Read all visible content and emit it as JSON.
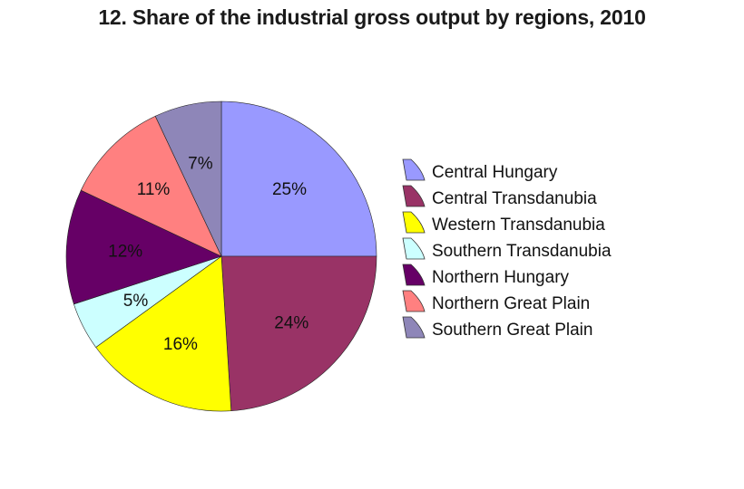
{
  "chart_data": {
    "type": "pie",
    "title": "12. Share of the industrial gross output by regions, 2010",
    "start_angle_deg": 0,
    "direction": "clockwise",
    "legend_position": "right",
    "slices": [
      {
        "label": "Central Hungary",
        "value": 25,
        "display": "25%",
        "color": "#9999FF"
      },
      {
        "label": "Central Transdanubia",
        "value": 24,
        "display": "24%",
        "color": "#993366"
      },
      {
        "label": "Western Transdanubia",
        "value": 16,
        "display": "16%",
        "color": "#FFFF00"
      },
      {
        "label": "Southern Transdanubia",
        "value": 5,
        "display": "5%",
        "color": "#CCFFFF"
      },
      {
        "label": "Northern Hungary",
        "value": 12,
        "display": "12%",
        "color": "#660066"
      },
      {
        "label": "Northern Great Plain",
        "value": 11,
        "display": "11%",
        "color": "#FF8080"
      },
      {
        "label": "Southern Great Plain",
        "value": 7,
        "display": "7%",
        "color": "#8E86B8"
      }
    ]
  }
}
